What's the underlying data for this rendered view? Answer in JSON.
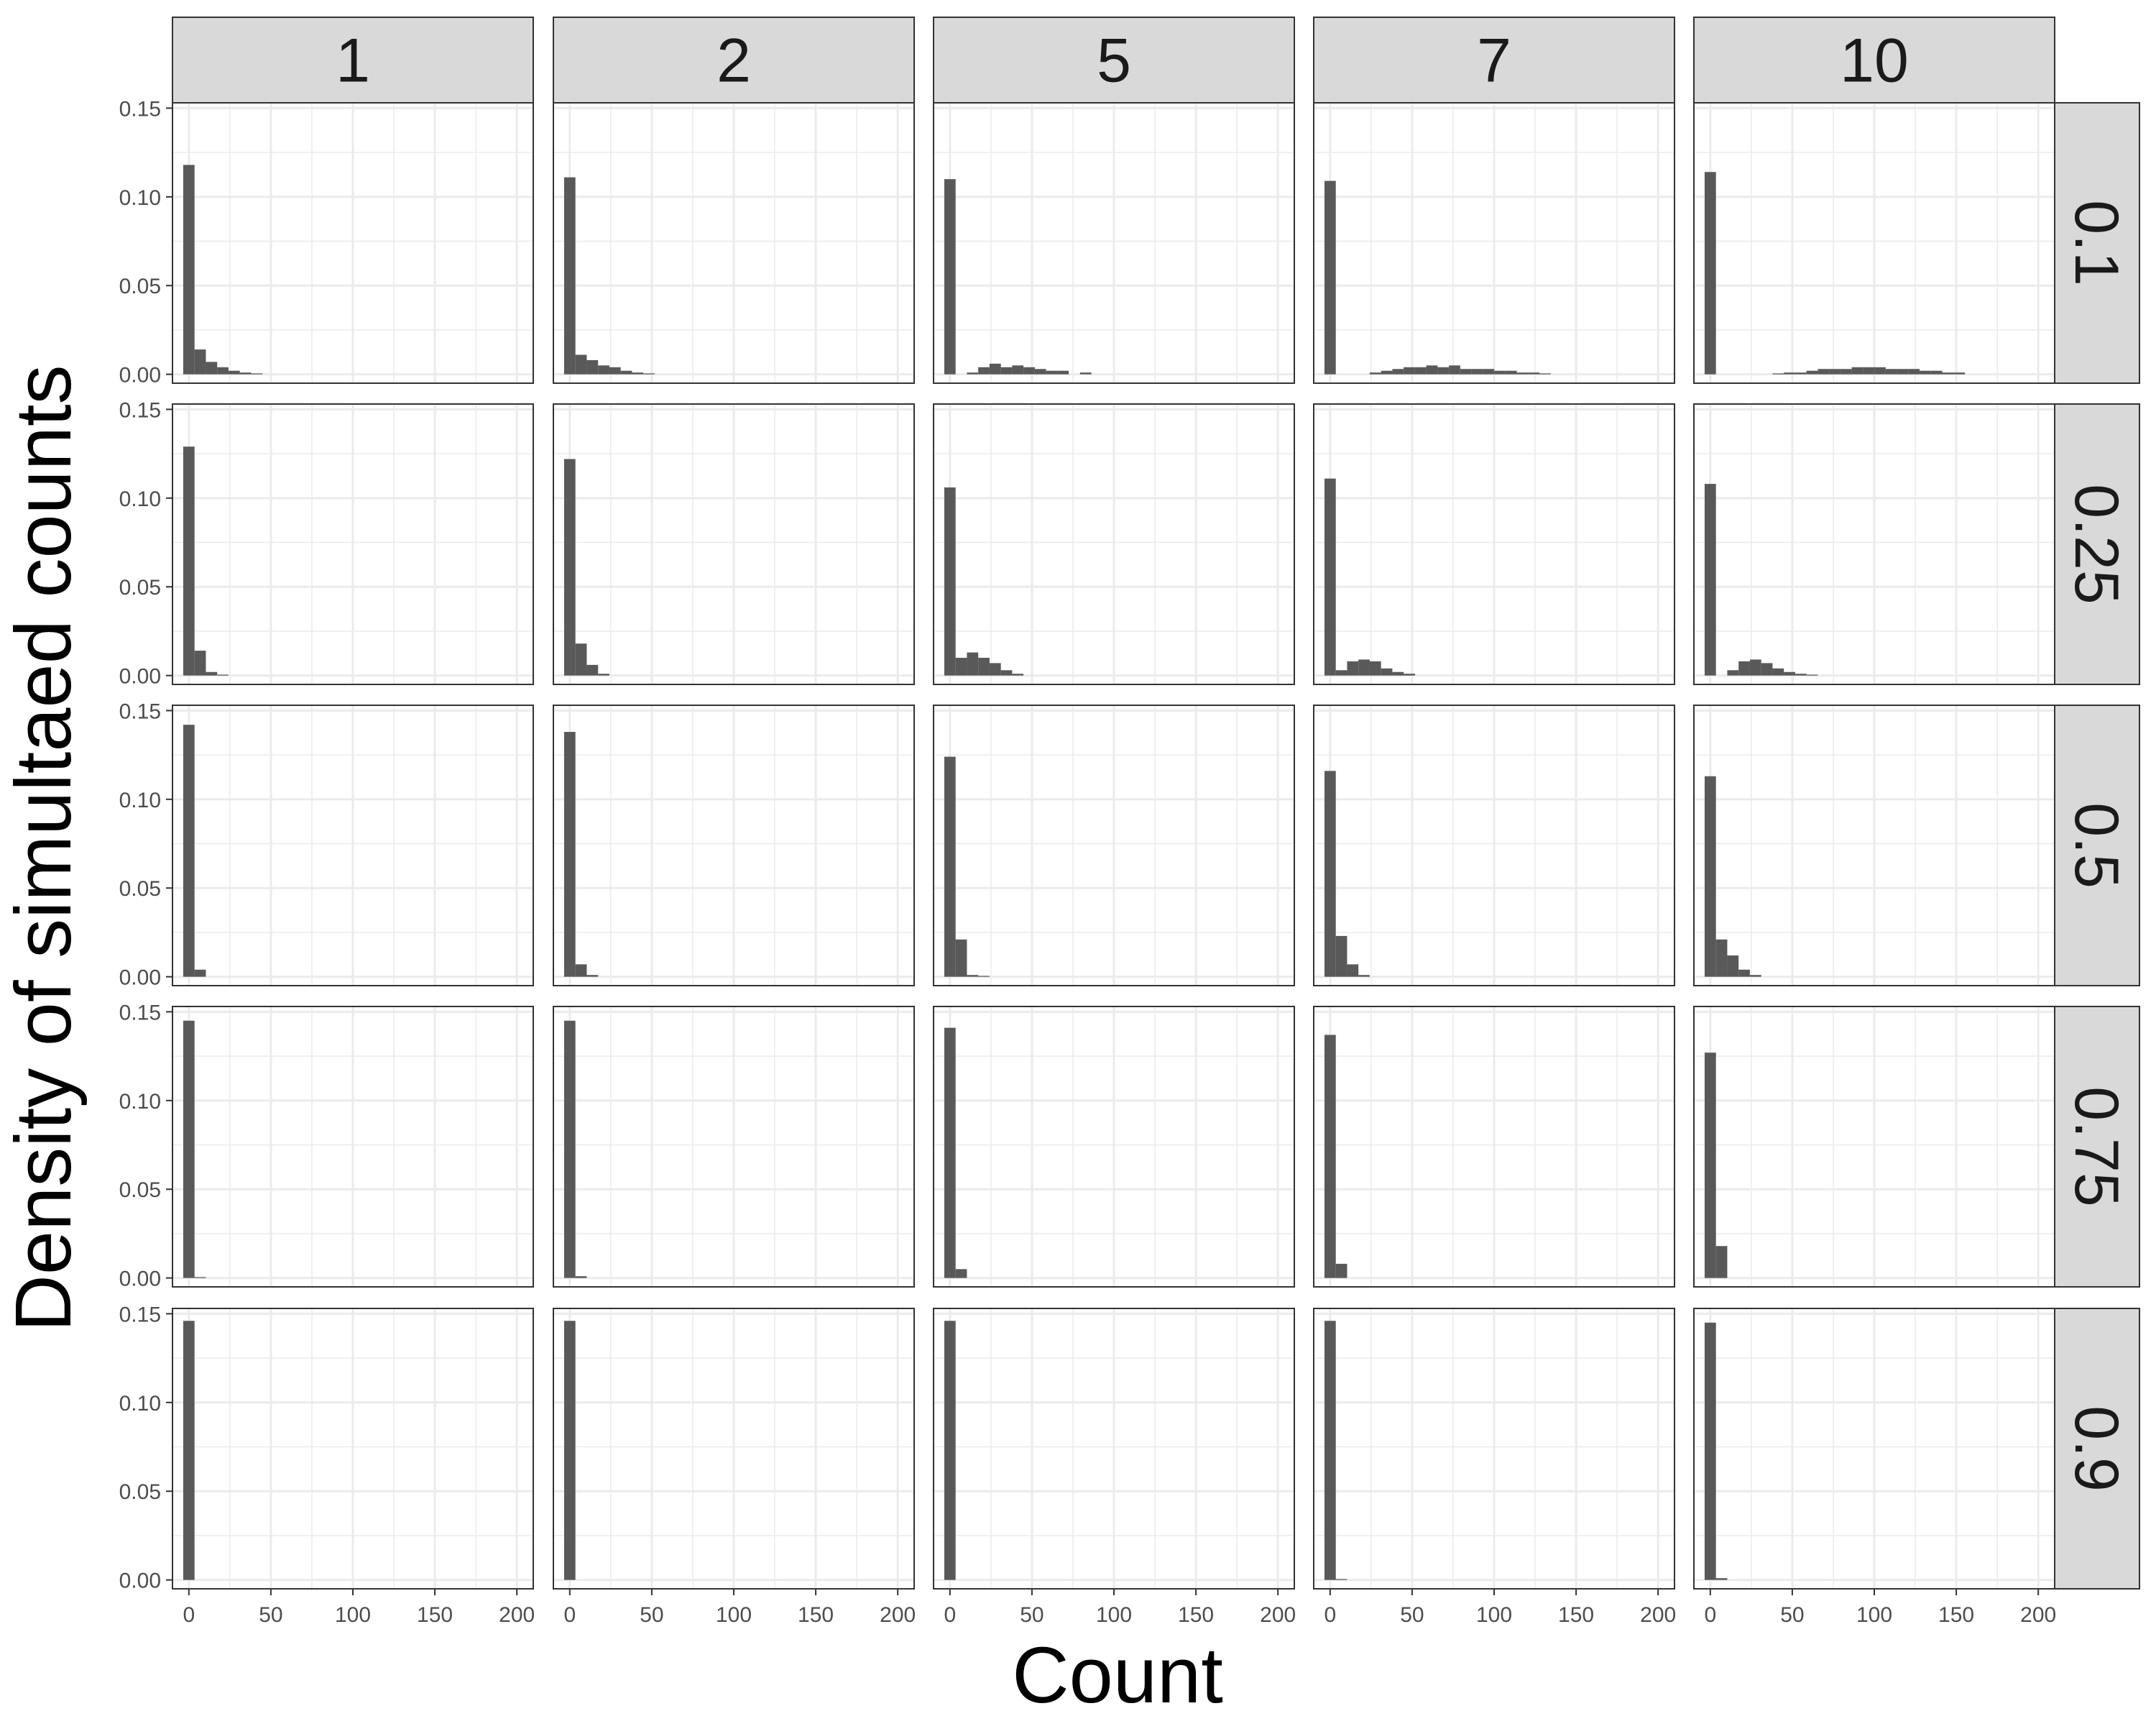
{
  "chart_data": {
    "type": "bar",
    "subtype": "faceted-histogram",
    "xlabel": "Count",
    "ylabel": "Density of simultaed counts",
    "xlim": [
      -10,
      210
    ],
    "ylim": [
      -0.005,
      0.153
    ],
    "x_ticks": [
      0,
      50,
      100,
      150,
      200
    ],
    "x_tick_labels": [
      "0",
      "50",
      "100",
      "150",
      "200"
    ],
    "y_ticks": [
      0,
      0.05,
      0.1,
      0.15
    ],
    "y_tick_labels": [
      "0.00",
      "0.05",
      "0.10",
      "0.15"
    ],
    "bin_width": 6.9,
    "grid": true,
    "colors": {
      "bar": "#595959",
      "strip": "#d9d9d9",
      "grid": "#ebebeb",
      "border": "#333333"
    },
    "column_facets": [
      "1",
      "2",
      "5",
      "7",
      "10"
    ],
    "row_facets": [
      "0.1",
      "0.25",
      "0.5",
      "0.75",
      "0.9"
    ],
    "panels": [
      [
        [
          0.118,
          0.014,
          0.007,
          0.004,
          0.002,
          0.001,
          0.0005
        ],
        [
          0.111,
          0.011,
          0.008,
          0.005,
          0.004,
          0.002,
          0.001,
          0.0005
        ],
        [
          0.11,
          0.0,
          0.001,
          0.004,
          0.006,
          0.004,
          0.005,
          0.004,
          0.003,
          0.002,
          0.002,
          0.0,
          0.001
        ],
        [
          0.109,
          0.0,
          0.0,
          0.0,
          0.001,
          0.002,
          0.003,
          0.004,
          0.004,
          0.005,
          0.004,
          0.005,
          0.003,
          0.003,
          0.003,
          0.002,
          0.002,
          0.001,
          0.001,
          0.0005
        ],
        [
          0.114,
          0.0,
          0.0,
          0.0,
          0.0,
          0.0,
          0.0005,
          0.001,
          0.001,
          0.002,
          0.003,
          0.003,
          0.003,
          0.004,
          0.004,
          0.004,
          0.003,
          0.003,
          0.003,
          0.002,
          0.002,
          0.001,
          0.001
        ]
      ],
      [
        [
          0.129,
          0.014,
          0.002,
          0.0005
        ],
        [
          0.122,
          0.018,
          0.006,
          0.001
        ],
        [
          0.106,
          0.01,
          0.013,
          0.01,
          0.007,
          0.003,
          0.001
        ],
        [
          0.111,
          0.003,
          0.008,
          0.009,
          0.008,
          0.004,
          0.002,
          0.001
        ],
        [
          0.108,
          0.0,
          0.003,
          0.008,
          0.009,
          0.007,
          0.004,
          0.002,
          0.001,
          0.0005
        ]
      ],
      [
        [
          0.142,
          0.004
        ],
        [
          0.138,
          0.007,
          0.001
        ],
        [
          0.124,
          0.021,
          0.001,
          0.0005
        ],
        [
          0.116,
          0.023,
          0.007,
          0.001
        ],
        [
          0.113,
          0.021,
          0.012,
          0.004,
          0.001
        ]
      ],
      [
        [
          0.145,
          0.0005
        ],
        [
          0.145,
          0.001
        ],
        [
          0.141,
          0.005
        ],
        [
          0.137,
          0.008
        ],
        [
          0.127,
          0.018
        ]
      ],
      [
        [
          0.146
        ],
        [
          0.146
        ],
        [
          0.146
        ],
        [
          0.146,
          0.0005
        ],
        [
          0.145,
          0.001
        ]
      ]
    ]
  }
}
